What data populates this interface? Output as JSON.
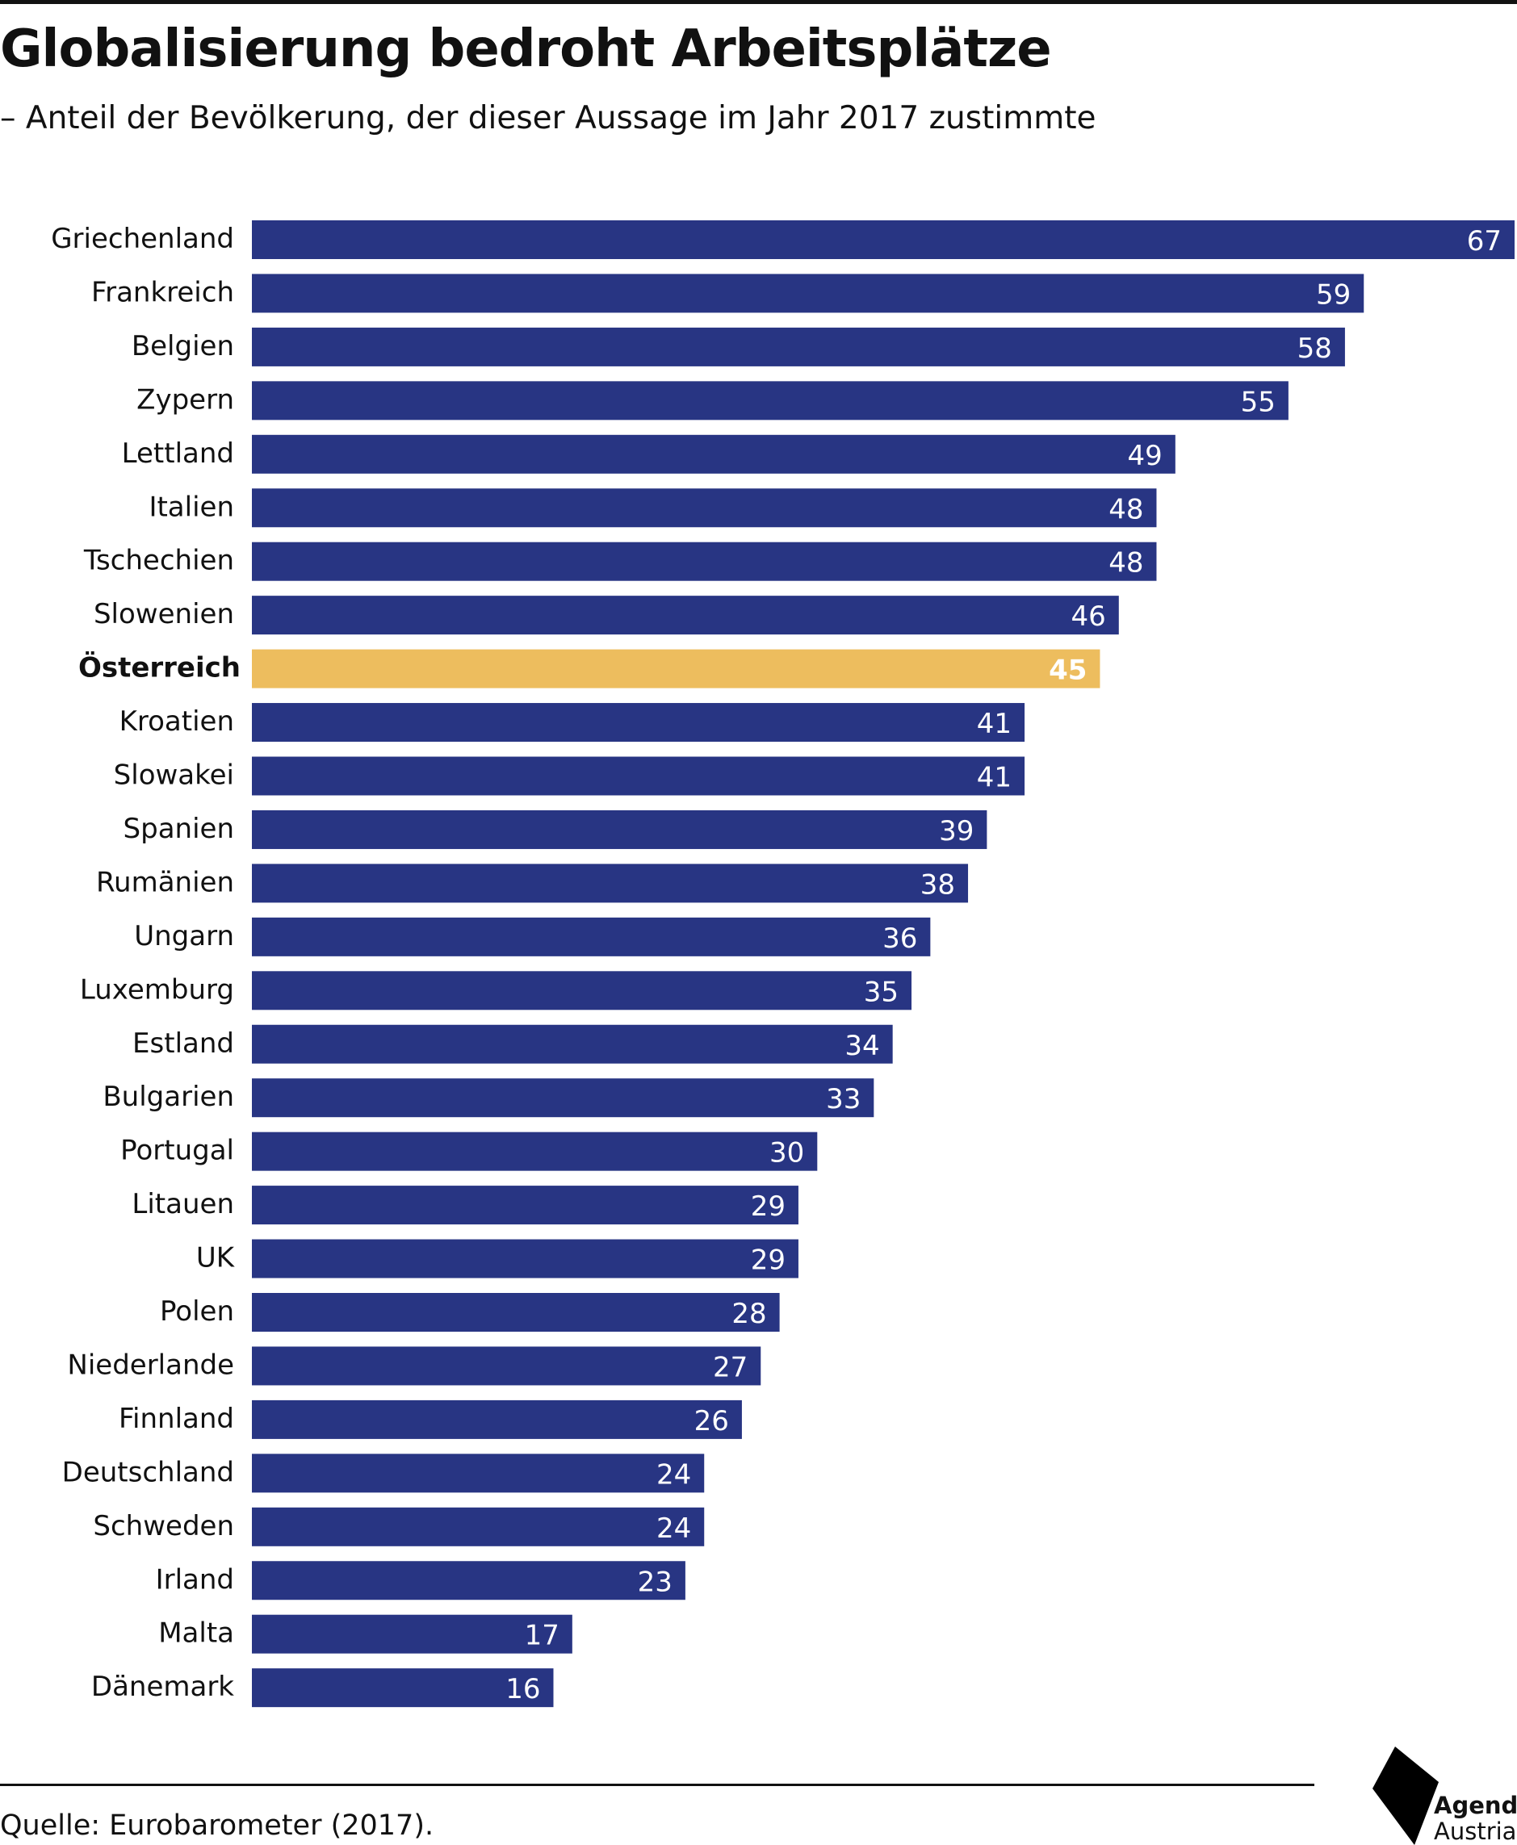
{
  "header": {
    "title": "Globalisierung bedroht Arbeitsplätze",
    "subtitle": "– Anteil der Bevölkerung, der dieser Aussage im Jahr 2017 zustimmte"
  },
  "footer": {
    "source": "Quelle: Eurobarometer (2017).",
    "logo_word_1": "Agenda",
    "logo_word_2": "Austria"
  },
  "colors": {
    "bar": "#283583",
    "highlight": "#EDBD5E",
    "value_label": "#ffffff",
    "category_label": "#111111"
  },
  "chart_data": {
    "type": "bar",
    "orientation": "horizontal",
    "title": "Globalisierung bedroht Arbeitsplätze",
    "subtitle": "– Anteil der Bevölkerung, der dieser Aussage im Jahr 2017 zustimmte",
    "xlabel": "",
    "ylabel": "",
    "xlim": [
      0,
      67
    ],
    "grid": false,
    "legend": "none",
    "data_labels": "inside-end",
    "highlighted_category": "Österreich",
    "categories": [
      "Griechenland",
      "Frankreich",
      "Belgien",
      "Zypern",
      "Lettland",
      "Italien",
      "Tschechien",
      "Slowenien",
      "Österreich",
      "Kroatien",
      "Slowakei",
      "Spanien",
      "Rumänien",
      "Ungarn",
      "Luxemburg",
      "Estland",
      "Bulgarien",
      "Portugal",
      "Litauen",
      "UK",
      "Polen",
      "Niederlande",
      "Finnland",
      "Deutschland",
      "Schweden",
      "Irland",
      "Malta",
      "Dänemark"
    ],
    "values": [
      67,
      59,
      58,
      55,
      49,
      48,
      48,
      46,
      45,
      41,
      41,
      39,
      38,
      36,
      35,
      34,
      33,
      30,
      29,
      29,
      28,
      27,
      26,
      24,
      24,
      23,
      17,
      16
    ]
  }
}
